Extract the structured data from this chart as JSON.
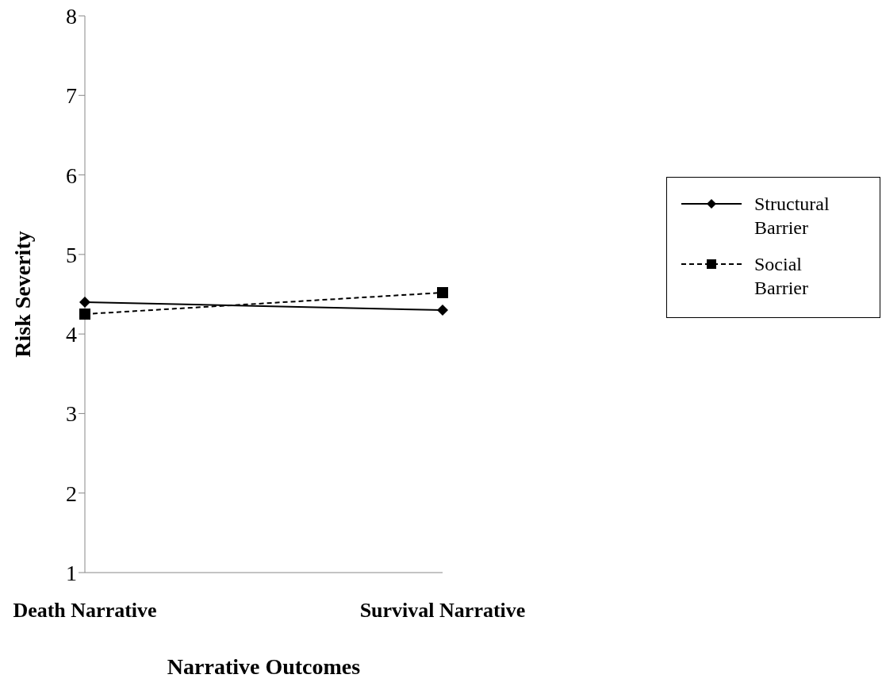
{
  "chart_data": {
    "type": "line",
    "xlabel": "Narrative Outcomes",
    "ylabel": "Risk Severity",
    "categories": [
      "Death Narrative",
      "Survival Narrative"
    ],
    "series": [
      {
        "name": "Structural Barrier",
        "color": "#000000",
        "values": [
          4.4,
          4.3
        ],
        "marker": "diamond",
        "line_style": "solid"
      },
      {
        "name": "Social Barrier",
        "color": "#000000",
        "values": [
          4.25,
          4.52
        ],
        "marker": "square",
        "line_style": "dashed"
      }
    ],
    "ylim": [
      1,
      8
    ],
    "yticks": [
      1,
      2,
      3,
      4,
      5,
      6,
      7,
      8
    ],
    "grid": false,
    "legend": "right"
  }
}
